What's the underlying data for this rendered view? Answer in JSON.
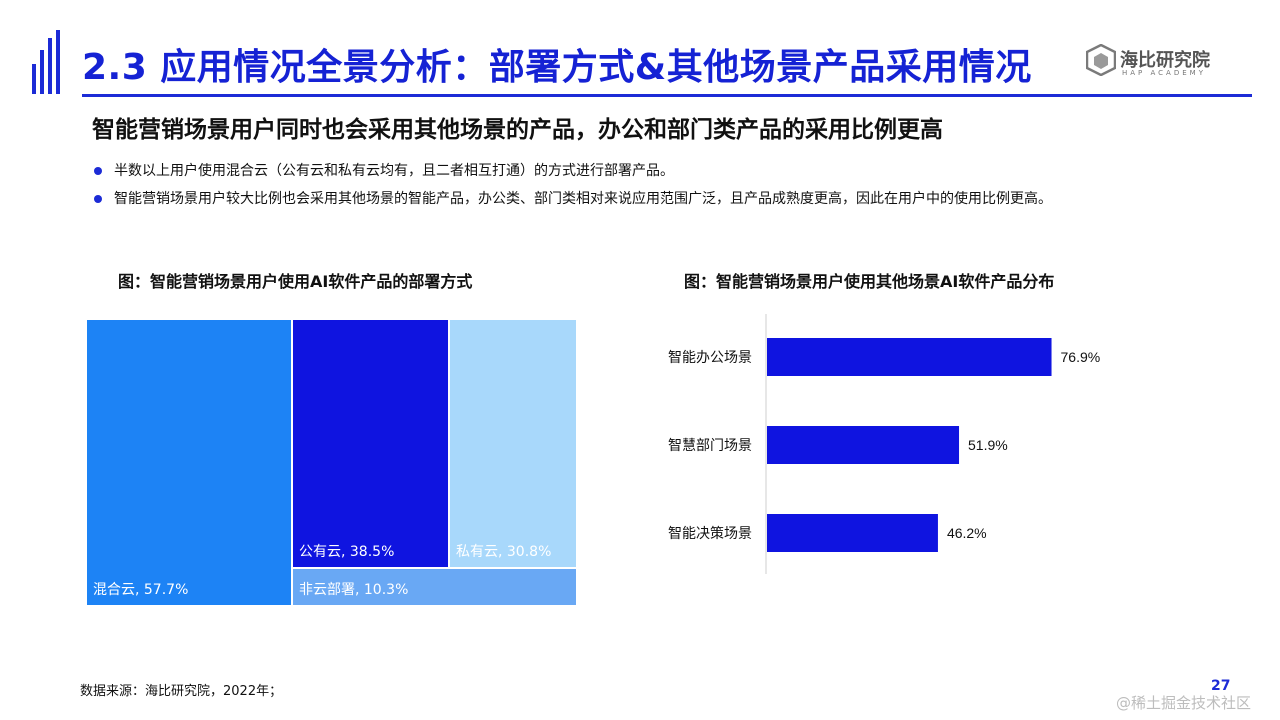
{
  "header": {
    "title": "2.3 应用情况全景分析：部署方式&其他场景产品采用情况",
    "logo_name": "海比研究院",
    "logo_sub": "HAP ACADEMY"
  },
  "subtitle": "智能营销场景用户同时也会采用其他场景的产品，办公和部门类产品的采用比例更高",
  "bullets": [
    "半数以上用户使用混合云（公有云和私有云均有，且二者相互打通）的方式进行部署产品。",
    "智能营销场景用户较大比例也会采用其他场景的智能产品，办公类、部门类相对来说应用范围广泛，且产品成熟度更高，因此在用户中的使用比例更高。"
  ],
  "chart_data": [
    {
      "type": "treemap",
      "title": "图：智能营销场景用户使用AI软件产品的部署方式",
      "items": [
        {
          "label": "混合云, 57.7%",
          "name": "混合云",
          "value": 57.7,
          "color": "#1d83f5"
        },
        {
          "label": "公有云, 38.5%",
          "name": "公有云",
          "value": 38.5,
          "color": "#0f14e0"
        },
        {
          "label": "私有云, 30.8%",
          "name": "私有云",
          "value": 30.8,
          "color": "#a8d8fb"
        },
        {
          "label": "非云部署, 10.3%",
          "name": "非云部署",
          "value": 10.3,
          "color": "#69a8f4"
        }
      ]
    },
    {
      "type": "bar",
      "orientation": "horizontal",
      "title": "图：智能营销场景用户使用其他场景AI软件产品分布",
      "categories": [
        "智能办公场景",
        "智慧部门场景",
        "智能决策场景"
      ],
      "values": [
        76.9,
        51.9,
        46.2
      ],
      "value_labels": [
        "76.9%",
        "51.9%",
        "46.2%"
      ],
      "color": "#0f14e0",
      "xlim": [
        0,
        100
      ]
    }
  ],
  "source": "数据来源：海比研究院，2022年；",
  "page_number": "27",
  "watermark": "@稀土掘金技术社区"
}
